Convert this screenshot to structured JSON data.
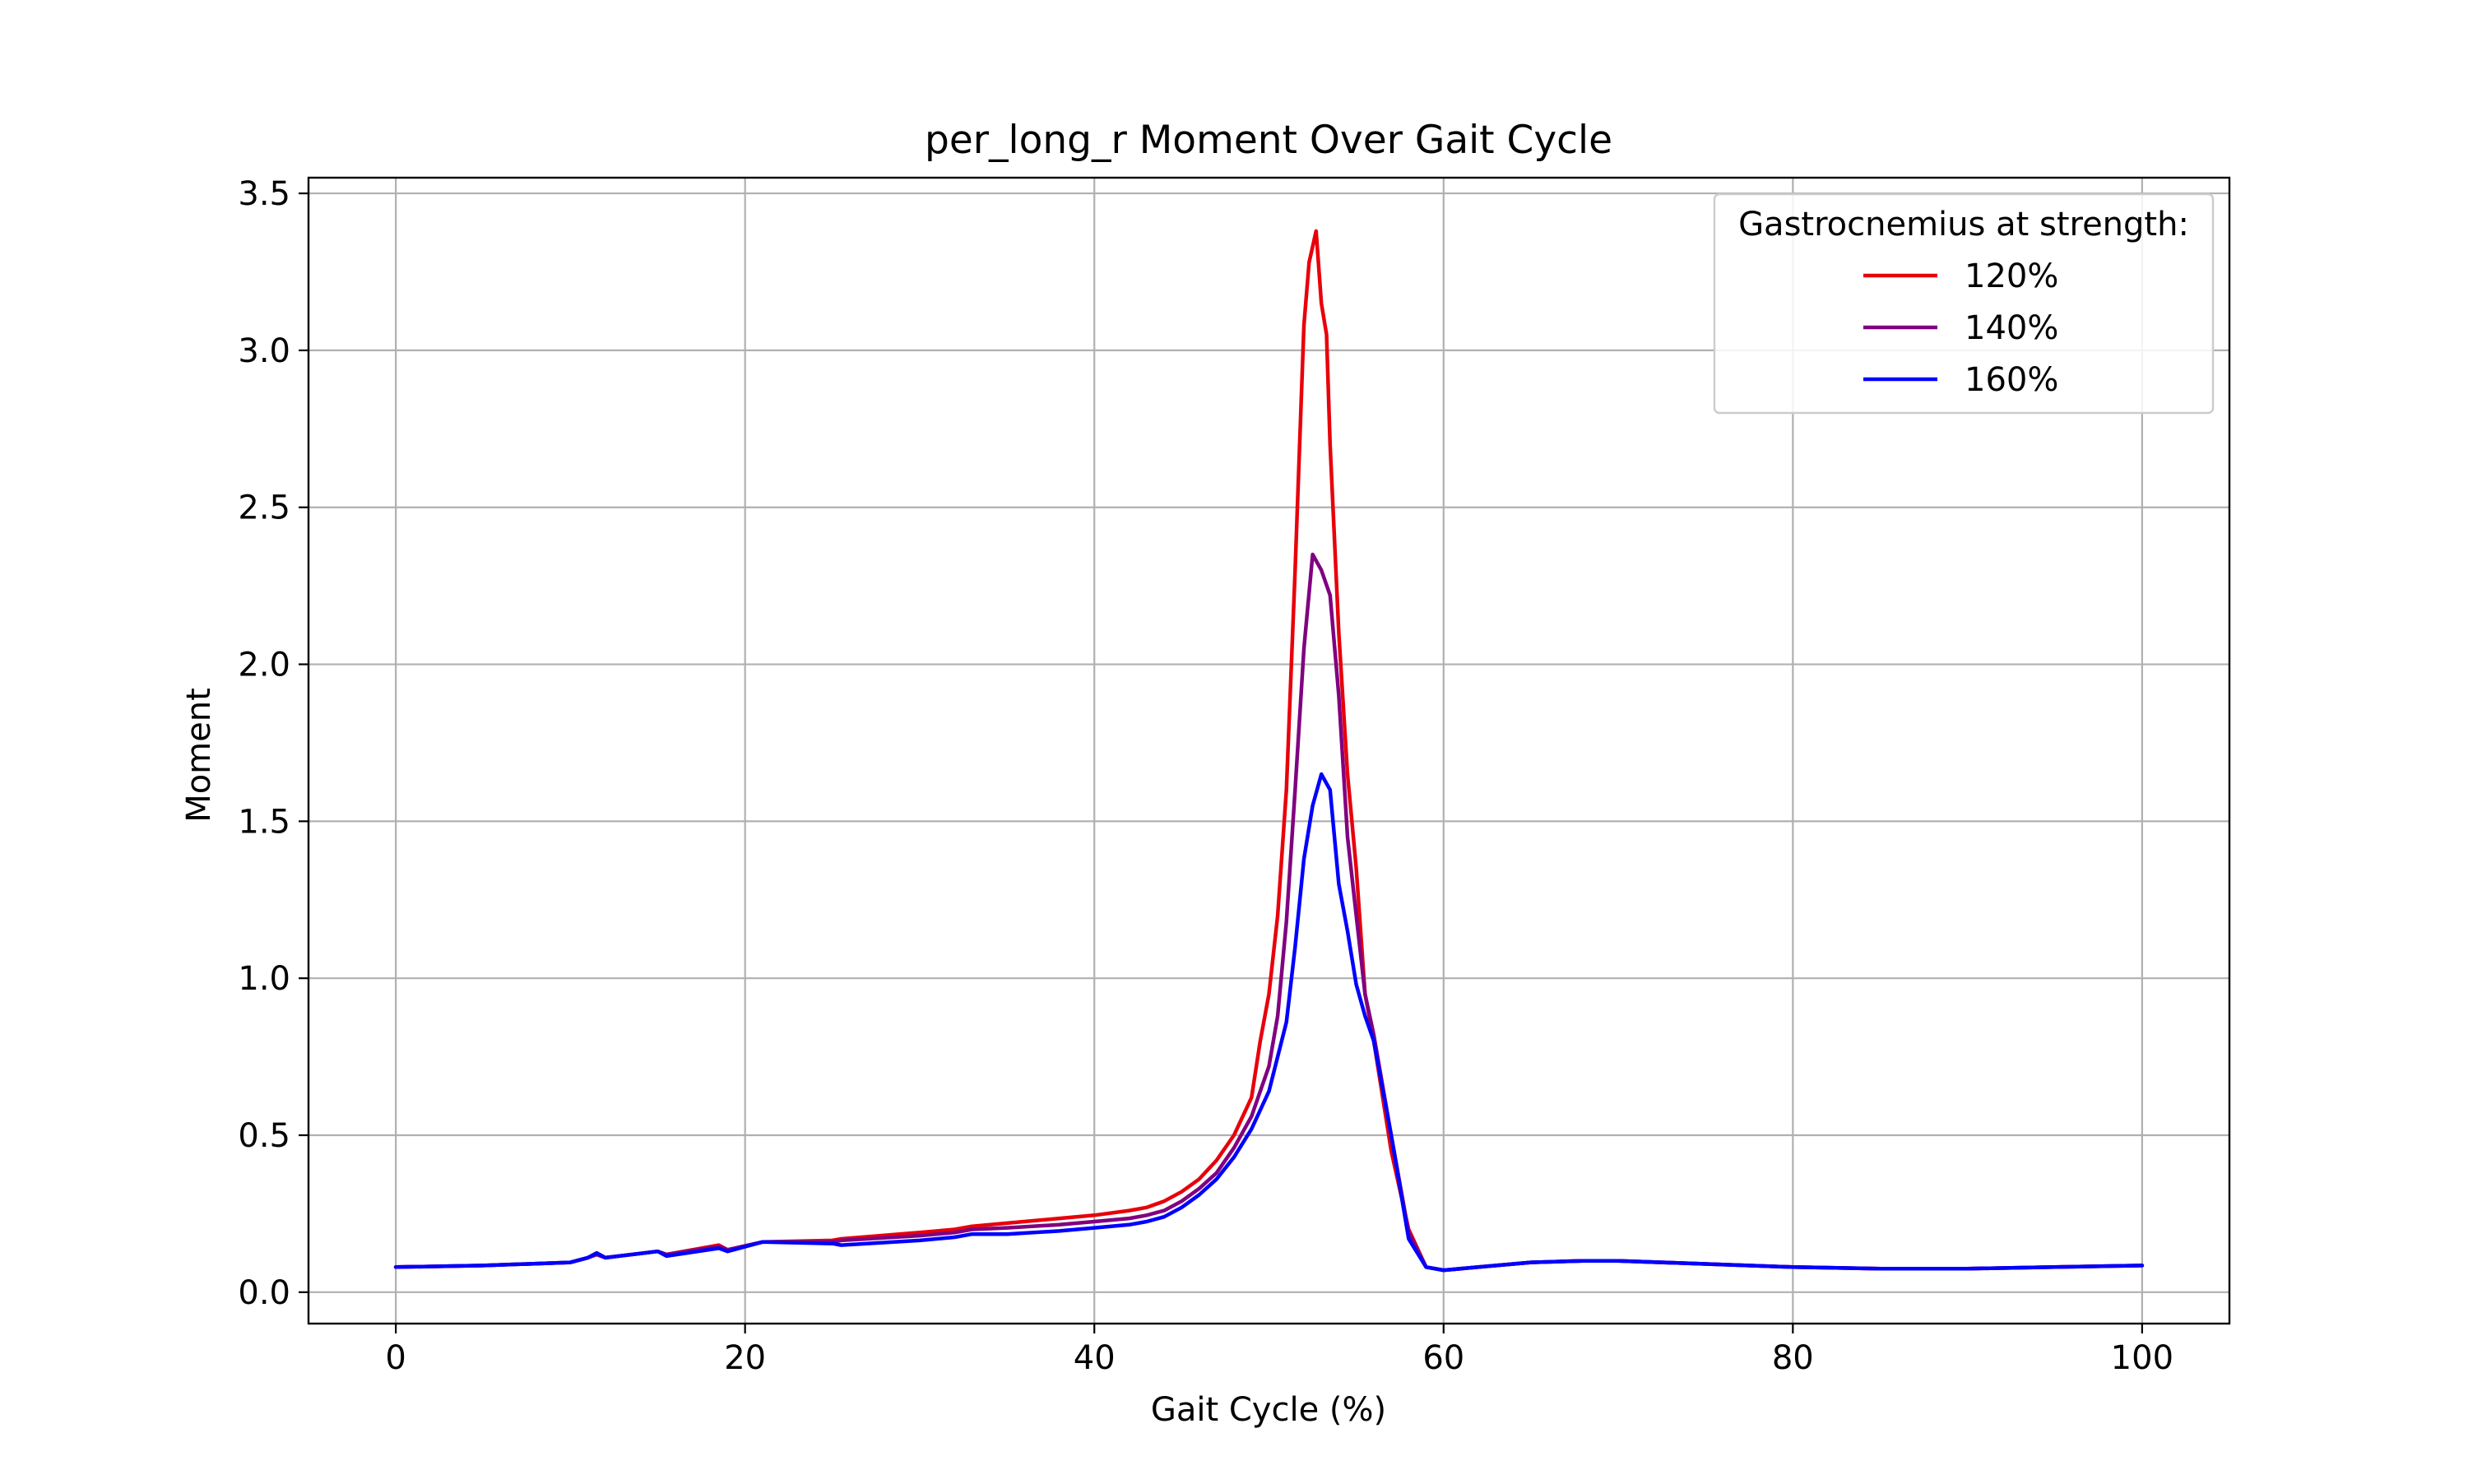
{
  "chart_data": {
    "type": "line",
    "title": "per_long_r Moment Over Gait Cycle",
    "xlabel": "Gait Cycle (%)",
    "ylabel": "Moment",
    "xlim": [
      -5,
      105
    ],
    "ylim": [
      -0.1,
      3.55
    ],
    "xticks": [
      0,
      20,
      40,
      60,
      80,
      100
    ],
    "xtick_labels": [
      "0",
      "20",
      "40",
      "60",
      "80",
      "100"
    ],
    "yticks": [
      0.0,
      0.5,
      1.0,
      1.5,
      2.0,
      2.5,
      3.0,
      3.5
    ],
    "ytick_labels": [
      "0.0",
      "0.5",
      "1.0",
      "1.5",
      "2.0",
      "2.5",
      "3.0",
      "3.5"
    ],
    "grid": true,
    "legend": {
      "title": "Gastrocnemius at strength:",
      "position": "top-right"
    },
    "series": [
      {
        "name": "120%",
        "color": "#e8000b",
        "x": [
          0,
          5,
          10,
          11,
          11.5,
          12,
          15,
          15.5,
          18.5,
          19,
          21,
          25,
          25.5,
          30,
          32,
          33,
          35,
          38,
          40,
          42,
          43,
          44,
          45,
          46,
          47,
          48,
          49,
          49.5,
          50,
          50.5,
          51,
          51.5,
          52,
          52.3,
          52.7,
          53,
          53.3,
          53.5,
          54,
          54.5,
          55,
          55.5,
          56,
          57,
          58,
          59,
          60,
          62,
          65,
          68,
          70,
          75,
          80,
          85,
          90,
          95,
          100
        ],
        "y": [
          0.08,
          0.085,
          0.095,
          0.11,
          0.12,
          0.11,
          0.13,
          0.12,
          0.15,
          0.135,
          0.16,
          0.165,
          0.17,
          0.19,
          0.2,
          0.21,
          0.22,
          0.235,
          0.245,
          0.26,
          0.27,
          0.29,
          0.32,
          0.36,
          0.42,
          0.5,
          0.62,
          0.8,
          0.95,
          1.2,
          1.6,
          2.3,
          3.08,
          3.28,
          3.38,
          3.15,
          3.05,
          2.7,
          2.1,
          1.65,
          1.35,
          0.95,
          0.8,
          0.45,
          0.2,
          0.08,
          0.07,
          0.08,
          0.095,
          0.1,
          0.1,
          0.09,
          0.08,
          0.075,
          0.075,
          0.08,
          0.085
        ]
      },
      {
        "name": "140%",
        "color": "#800080",
        "x": [
          0,
          5,
          10,
          11,
          11.5,
          12,
          15,
          15.5,
          18.5,
          19,
          21,
          25,
          25.5,
          30,
          32,
          33,
          35,
          38,
          40,
          42,
          43,
          44,
          45,
          46,
          47,
          48,
          49,
          50,
          50.5,
          51,
          51.5,
          52,
          52.5,
          53,
          53.5,
          54,
          54.5,
          55,
          55.5,
          56,
          57,
          58,
          59,
          60,
          62,
          65,
          68,
          70,
          75,
          80,
          85,
          90,
          95,
          100
        ],
        "y": [
          0.08,
          0.085,
          0.095,
          0.11,
          0.12,
          0.11,
          0.13,
          0.12,
          0.145,
          0.135,
          0.16,
          0.16,
          0.165,
          0.18,
          0.19,
          0.2,
          0.205,
          0.215,
          0.225,
          0.235,
          0.245,
          0.26,
          0.29,
          0.33,
          0.38,
          0.46,
          0.56,
          0.72,
          0.88,
          1.18,
          1.6,
          2.05,
          2.35,
          2.3,
          2.22,
          1.9,
          1.45,
          1.2,
          0.95,
          0.82,
          0.5,
          0.19,
          0.08,
          0.07,
          0.08,
          0.095,
          0.1,
          0.1,
          0.09,
          0.08,
          0.075,
          0.075,
          0.08,
          0.085
        ]
      },
      {
        "name": "160%",
        "color": "#0000ff",
        "x": [
          0,
          5,
          10,
          11,
          11.5,
          12,
          15,
          15.5,
          18.5,
          19,
          21,
          25,
          25.5,
          30,
          32,
          33,
          35,
          38,
          40,
          42,
          43,
          44,
          45,
          46,
          47,
          48,
          49,
          50,
          50.5,
          51,
          51.5,
          52,
          52.5,
          53,
          53.5,
          54,
          54.5,
          55,
          55.5,
          56,
          57,
          58,
          59,
          60,
          62,
          65,
          68,
          70,
          75,
          80,
          85,
          90,
          95,
          100
        ],
        "y": [
          0.08,
          0.085,
          0.095,
          0.11,
          0.125,
          0.11,
          0.13,
          0.115,
          0.14,
          0.13,
          0.16,
          0.155,
          0.15,
          0.165,
          0.175,
          0.185,
          0.185,
          0.195,
          0.205,
          0.215,
          0.225,
          0.24,
          0.27,
          0.31,
          0.36,
          0.43,
          0.52,
          0.64,
          0.75,
          0.86,
          1.1,
          1.38,
          1.55,
          1.65,
          1.6,
          1.3,
          1.15,
          0.98,
          0.88,
          0.8,
          0.5,
          0.17,
          0.08,
          0.07,
          0.08,
          0.095,
          0.1,
          0.1,
          0.09,
          0.08,
          0.075,
          0.075,
          0.08,
          0.085
        ]
      }
    ]
  }
}
